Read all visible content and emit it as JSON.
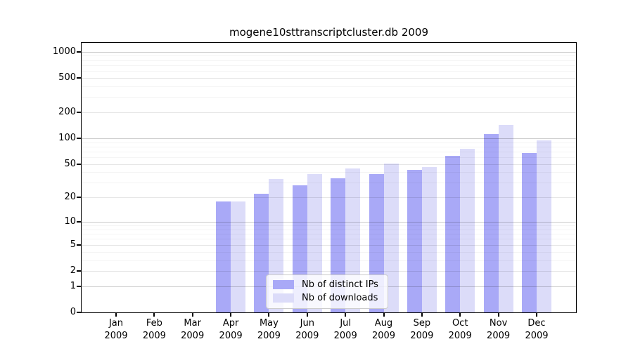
{
  "chart_data": {
    "type": "bar",
    "title": "mogene10sttranscriptcluster.db 2009",
    "categories": [
      "Jan 2009",
      "Feb 2009",
      "Mar 2009",
      "Apr 2009",
      "May 2009",
      "Jun 2009",
      "Jul 2009",
      "Aug 2009",
      "Sep 2009",
      "Oct 2009",
      "Nov 2009",
      "Dec 2009"
    ],
    "series": [
      {
        "name": "Nb of distinct IPs",
        "color": "#a9a9f7",
        "values": [
          0,
          0,
          0,
          18,
          22,
          28,
          34,
          38,
          43,
          62,
          112,
          67
        ]
      },
      {
        "name": "Nb of downloads",
        "color": "#dcdcf9",
        "values": [
          0,
          0,
          0,
          18,
          33,
          38,
          44,
          51,
          46,
          76,
          143,
          94
        ]
      }
    ],
    "y_axis": {
      "scale": "log10(value+1)",
      "ticks": [
        0,
        1,
        2,
        5,
        10,
        20,
        50,
        100,
        200,
        500,
        1000
      ],
      "minor_ticks": [
        3,
        4,
        6,
        7,
        8,
        9,
        30,
        40,
        60,
        70,
        80,
        90,
        300,
        400,
        600,
        700,
        800,
        900
      ],
      "range_top": 1265
    },
    "x_axis": {
      "year_row": "2009"
    },
    "grid": "horizontal",
    "legend_position": "inside-bottom-center",
    "colors": {
      "distinct_ips": "#a9a9f7",
      "downloads": "#dcdcf9",
      "decade_grid": "#cccccc",
      "major_grid": "#e5e5e5",
      "minor_grid": "#f2f2f2"
    }
  }
}
